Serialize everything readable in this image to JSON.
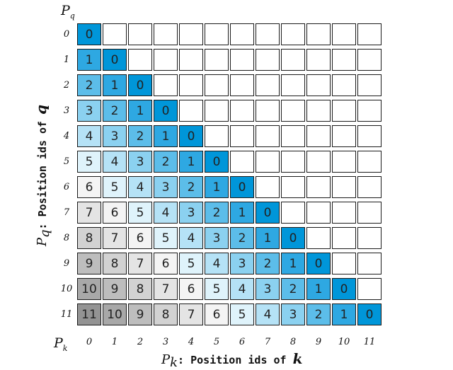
{
  "axes": {
    "q_symbol": "P",
    "q_subscript": "q",
    "k_symbol": "P",
    "k_subscript": "k",
    "y_title_prefix": "P",
    "y_title_sub": "q",
    "y_title_text": ": Position ids of ",
    "y_title_var": "q",
    "x_title_prefix": "P",
    "x_title_sub": "k",
    "x_title_text": ": Position ids of ",
    "x_title_var": "k"
  },
  "chart_data": {
    "type": "heatmap",
    "row_labels": [
      "0",
      "1",
      "2",
      "3",
      "4",
      "5",
      "6",
      "7",
      "8",
      "9",
      "10",
      "11"
    ],
    "col_labels": [
      "0",
      "1",
      "2",
      "3",
      "4",
      "5",
      "6",
      "7",
      "8",
      "9",
      "10",
      "11"
    ],
    "cells": [
      [
        0,
        null,
        null,
        null,
        null,
        null,
        null,
        null,
        null,
        null,
        null,
        null
      ],
      [
        1,
        0,
        null,
        null,
        null,
        null,
        null,
        null,
        null,
        null,
        null,
        null
      ],
      [
        2,
        1,
        0,
        null,
        null,
        null,
        null,
        null,
        null,
        null,
        null,
        null
      ],
      [
        3,
        2,
        1,
        0,
        null,
        null,
        null,
        null,
        null,
        null,
        null,
        null
      ],
      [
        4,
        3,
        2,
        1,
        0,
        null,
        null,
        null,
        null,
        null,
        null,
        null
      ],
      [
        5,
        4,
        3,
        2,
        1,
        0,
        null,
        null,
        null,
        null,
        null,
        null
      ],
      [
        6,
        5,
        4,
        3,
        2,
        1,
        0,
        null,
        null,
        null,
        null,
        null
      ],
      [
        7,
        6,
        5,
        4,
        3,
        2,
        1,
        0,
        null,
        null,
        null,
        null
      ],
      [
        8,
        7,
        6,
        5,
        4,
        3,
        2,
        1,
        0,
        null,
        null,
        null
      ],
      [
        9,
        8,
        7,
        6,
        5,
        4,
        3,
        2,
        1,
        0,
        null,
        null
      ],
      [
        10,
        9,
        8,
        7,
        6,
        5,
        4,
        3,
        2,
        1,
        0,
        null
      ],
      [
        11,
        10,
        9,
        8,
        7,
        6,
        5,
        4,
        3,
        2,
        1,
        0
      ]
    ],
    "color_scale": {
      "0": "#0096d9",
      "1": "#2ea8e2",
      "2": "#5cbde9",
      "3": "#8bd1f0",
      "4": "#b5e2f6",
      "5": "#dff3fb",
      "6": "#f4f4f4",
      "7": "#e4e4e4",
      "8": "#d2d2d2",
      "9": "#bdbdbd",
      "10": "#a8a8a8",
      "11": "#939393"
    },
    "empty_color": "#ffffff"
  }
}
